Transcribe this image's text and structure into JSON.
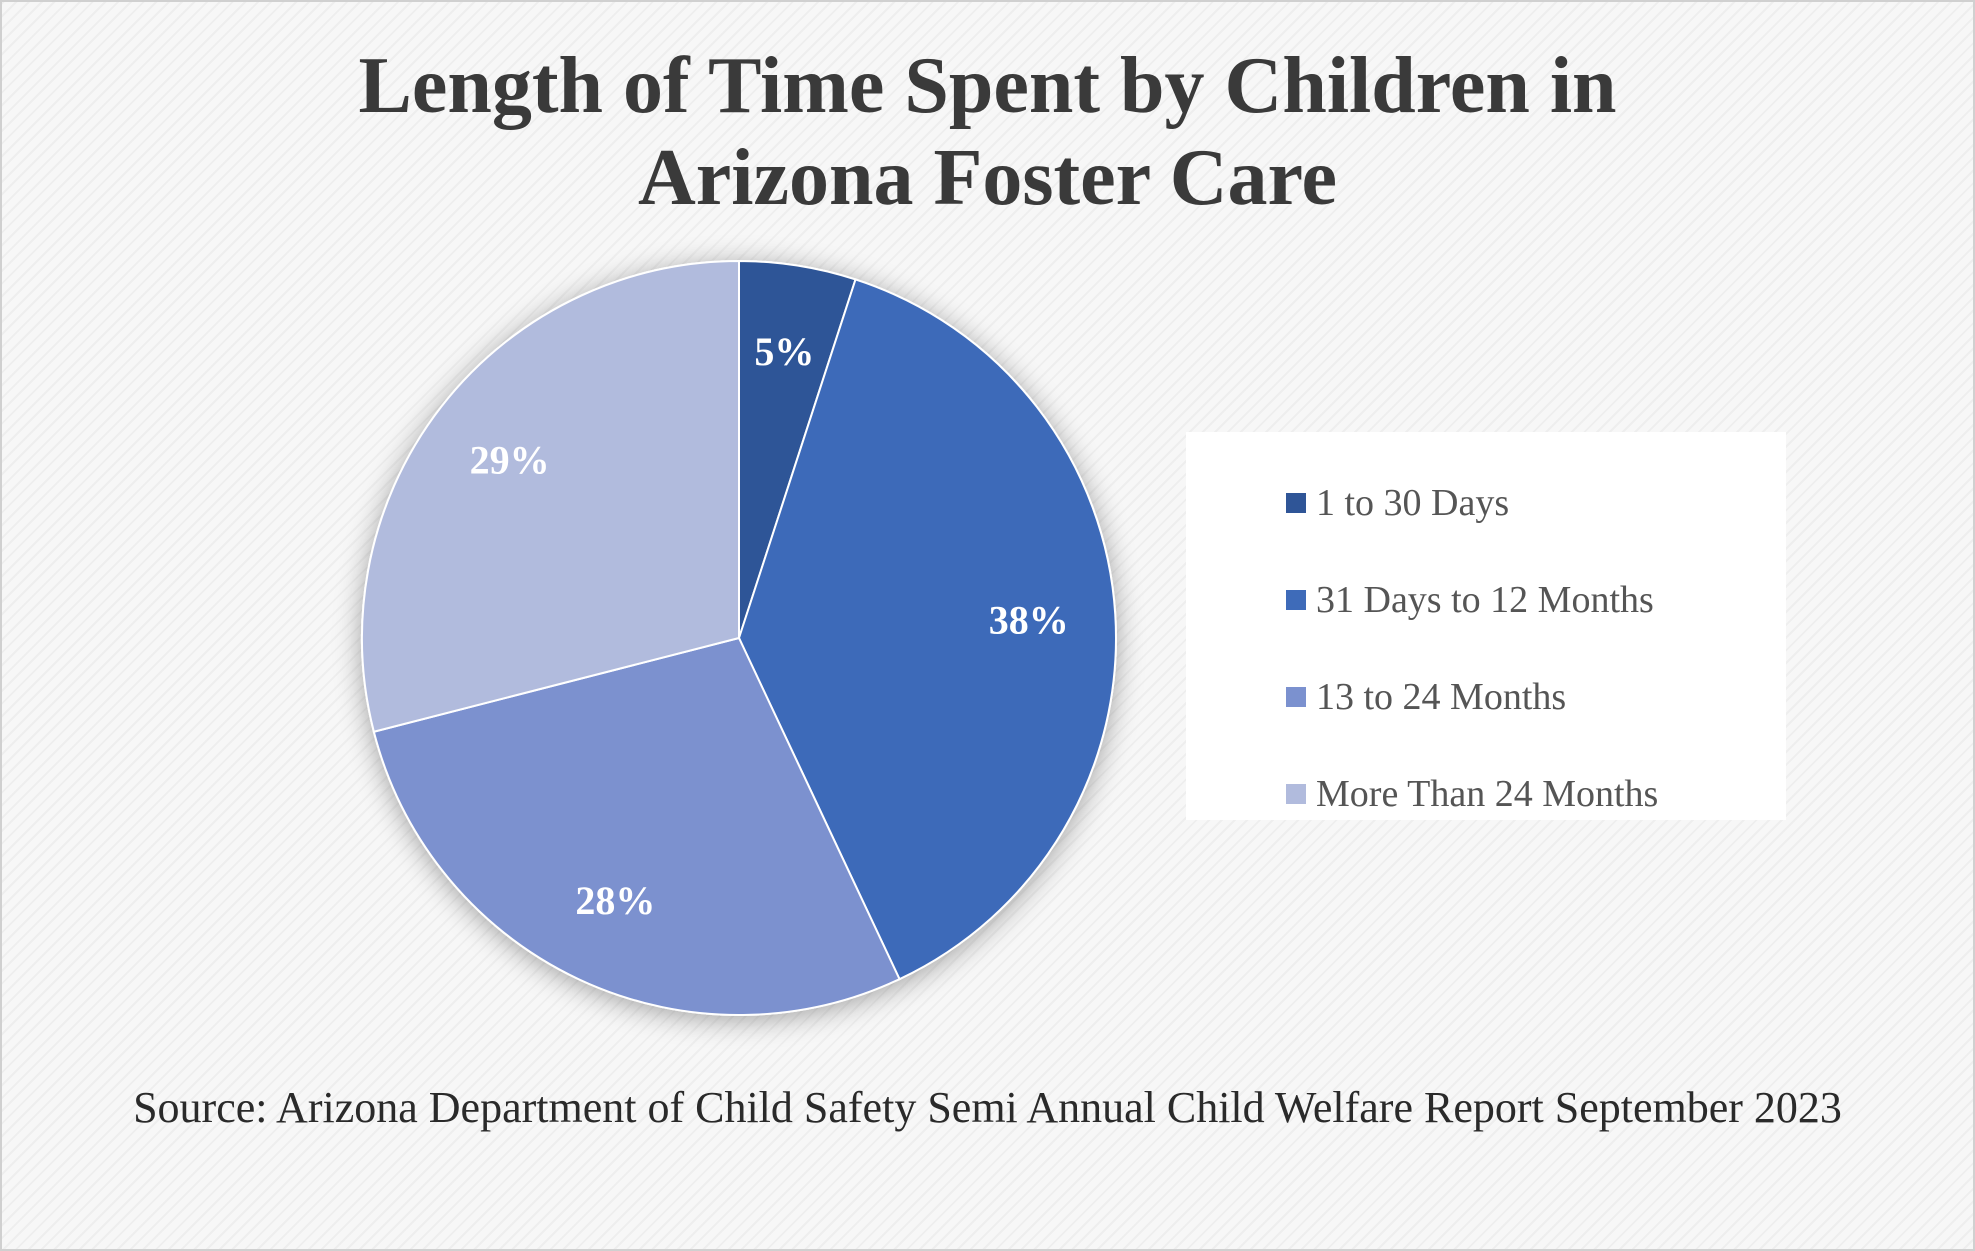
{
  "chart_data": {
    "type": "pie",
    "title_lines": [
      "Length of Time Spent by Children in",
      "Arizona Foster Care"
    ],
    "categories": [
      "1 to 30 Days",
      "31 Days to 12 Months",
      "13 to 24 Months",
      "More Than 24 Months"
    ],
    "values": [
      5,
      38,
      28,
      29
    ],
    "data_labels": [
      "5%",
      "38%",
      "28%",
      "29%"
    ],
    "colors": [
      "#2f5597",
      "#3e6bb9",
      "#7b91cf",
      "#b1bbdd"
    ],
    "legend_position": "right",
    "source": "Source: Arizona Department of Child Safety Semi Annual Child Welfare Report September 2023"
  }
}
